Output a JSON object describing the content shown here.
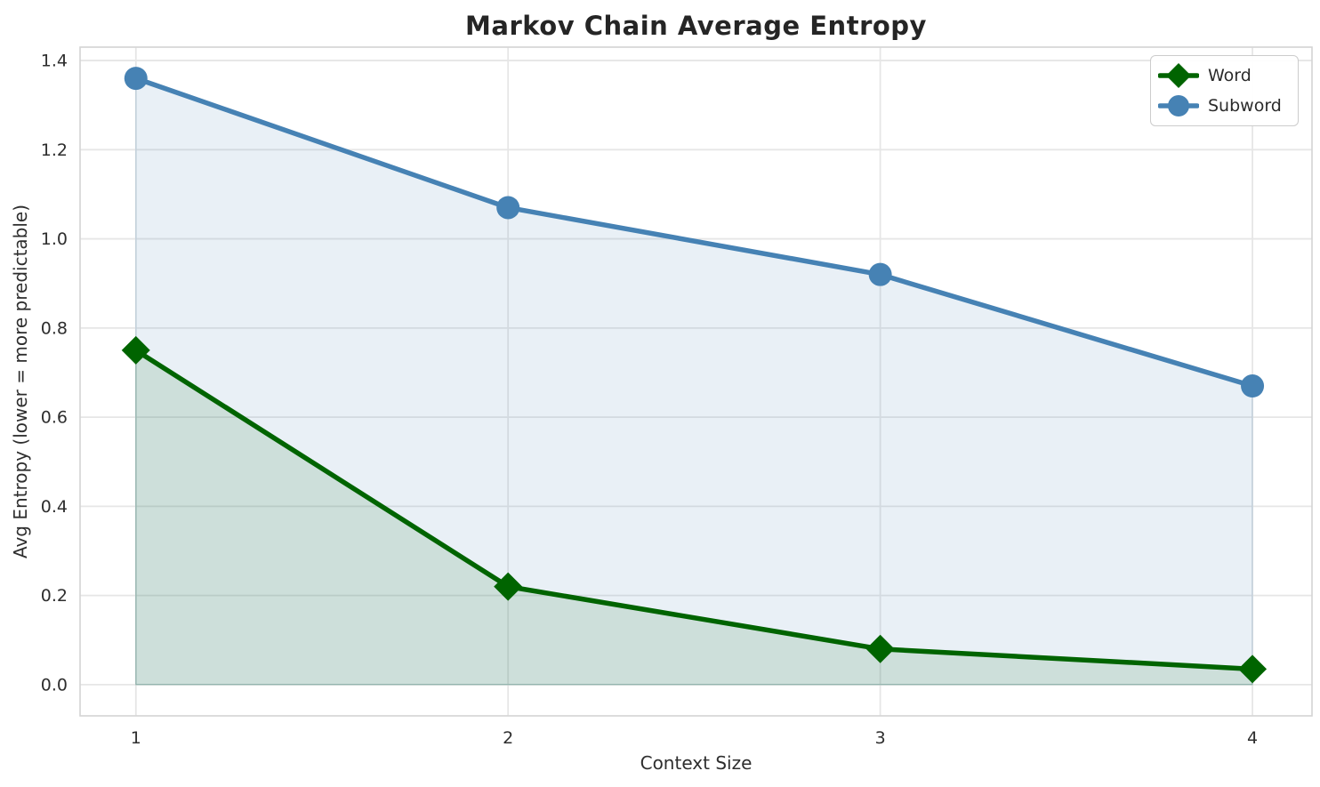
{
  "chart_data": {
    "type": "line",
    "title": "Markov Chain Average Entropy",
    "xlabel": "Context Size",
    "ylabel": "Avg Entropy (lower = more predictable)",
    "x": [
      1,
      2,
      3,
      4
    ],
    "series": [
      {
        "name": "Word",
        "values": [
          0.75,
          0.22,
          0.08,
          0.035
        ],
        "color": "#006400",
        "marker": "diamond",
        "fill_alpha": 0.12
      },
      {
        "name": "Subword",
        "values": [
          1.36,
          1.07,
          0.92,
          0.67
        ],
        "color": "#4682B4",
        "marker": "circle",
        "fill_alpha": 0.12
      }
    ],
    "fill_baseline": 0,
    "xticks": [
      "1",
      "2",
      "3",
      "4"
    ],
    "xtick_values": [
      1,
      2,
      3,
      4
    ],
    "yticks": [
      "0.0",
      "0.2",
      "0.4",
      "0.6",
      "0.8",
      "1.0",
      "1.2",
      "1.4"
    ],
    "ytick_values": [
      0,
      0.2,
      0.4,
      0.6,
      0.8,
      1.0,
      1.2,
      1.4
    ],
    "xlim": [
      0.85,
      4.16
    ],
    "ylim": [
      -0.07,
      1.43
    ],
    "grid": true,
    "legend_position": "upper right",
    "colors": {
      "grid": "#e6e6e6",
      "spine": "#d4d4d4",
      "tick_label": "#2e2e2e",
      "title": "#252525"
    }
  }
}
